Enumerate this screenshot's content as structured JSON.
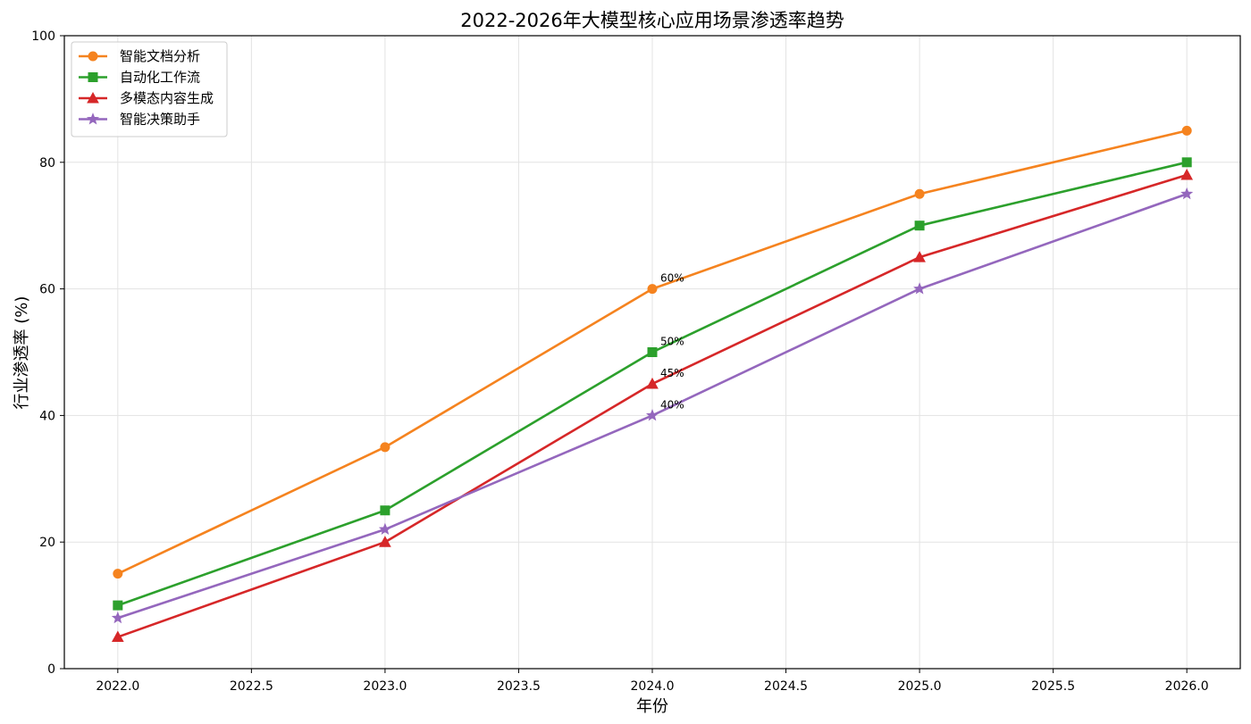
{
  "chart_data": {
    "type": "line",
    "title": "2022-2026年大模型核心应用场景渗透率趋势",
    "xlabel": "年份",
    "ylabel": "行业渗透率 (%)",
    "x": [
      2022,
      2023,
      2024,
      2025,
      2026
    ],
    "xlim": [
      2021.8,
      2026.2
    ],
    "ylim": [
      0,
      100
    ],
    "x_ticks": [
      2022.0,
      2022.5,
      2023.0,
      2023.5,
      2024.0,
      2024.5,
      2025.0,
      2025.5,
      2026.0
    ],
    "x_tick_labels": [
      "2022.0",
      "2022.5",
      "2023.0",
      "2023.5",
      "2024.0",
      "2024.5",
      "2025.0",
      "2025.5",
      "2026.0"
    ],
    "y_ticks": [
      0,
      20,
      40,
      60,
      80,
      100
    ],
    "y_tick_labels": [
      "0",
      "20",
      "40",
      "60",
      "80",
      "100"
    ],
    "grid": true,
    "legend_position": "top-left",
    "series": [
      {
        "name": "智能文档分析",
        "color": "#f5831f",
        "marker": "circle",
        "values": [
          15,
          35,
          60,
          75,
          85
        ]
      },
      {
        "name": "自动化工作流",
        "color": "#2ca02c",
        "marker": "square",
        "values": [
          10,
          25,
          50,
          70,
          80
        ]
      },
      {
        "name": "多模态内容生成",
        "color": "#d62728",
        "marker": "triangle",
        "values": [
          5,
          20,
          45,
          65,
          78
        ]
      },
      {
        "name": "智能决策助手",
        "color": "#9467bd",
        "marker": "star",
        "values": [
          8,
          22,
          40,
          60,
          75
        ]
      }
    ],
    "annotations": [
      {
        "x": 2024,
        "y": 60,
        "text": "60%"
      },
      {
        "x": 2024,
        "y": 50,
        "text": "50%"
      },
      {
        "x": 2024,
        "y": 45,
        "text": "45%"
      },
      {
        "x": 2024,
        "y": 40,
        "text": "40%"
      }
    ]
  }
}
